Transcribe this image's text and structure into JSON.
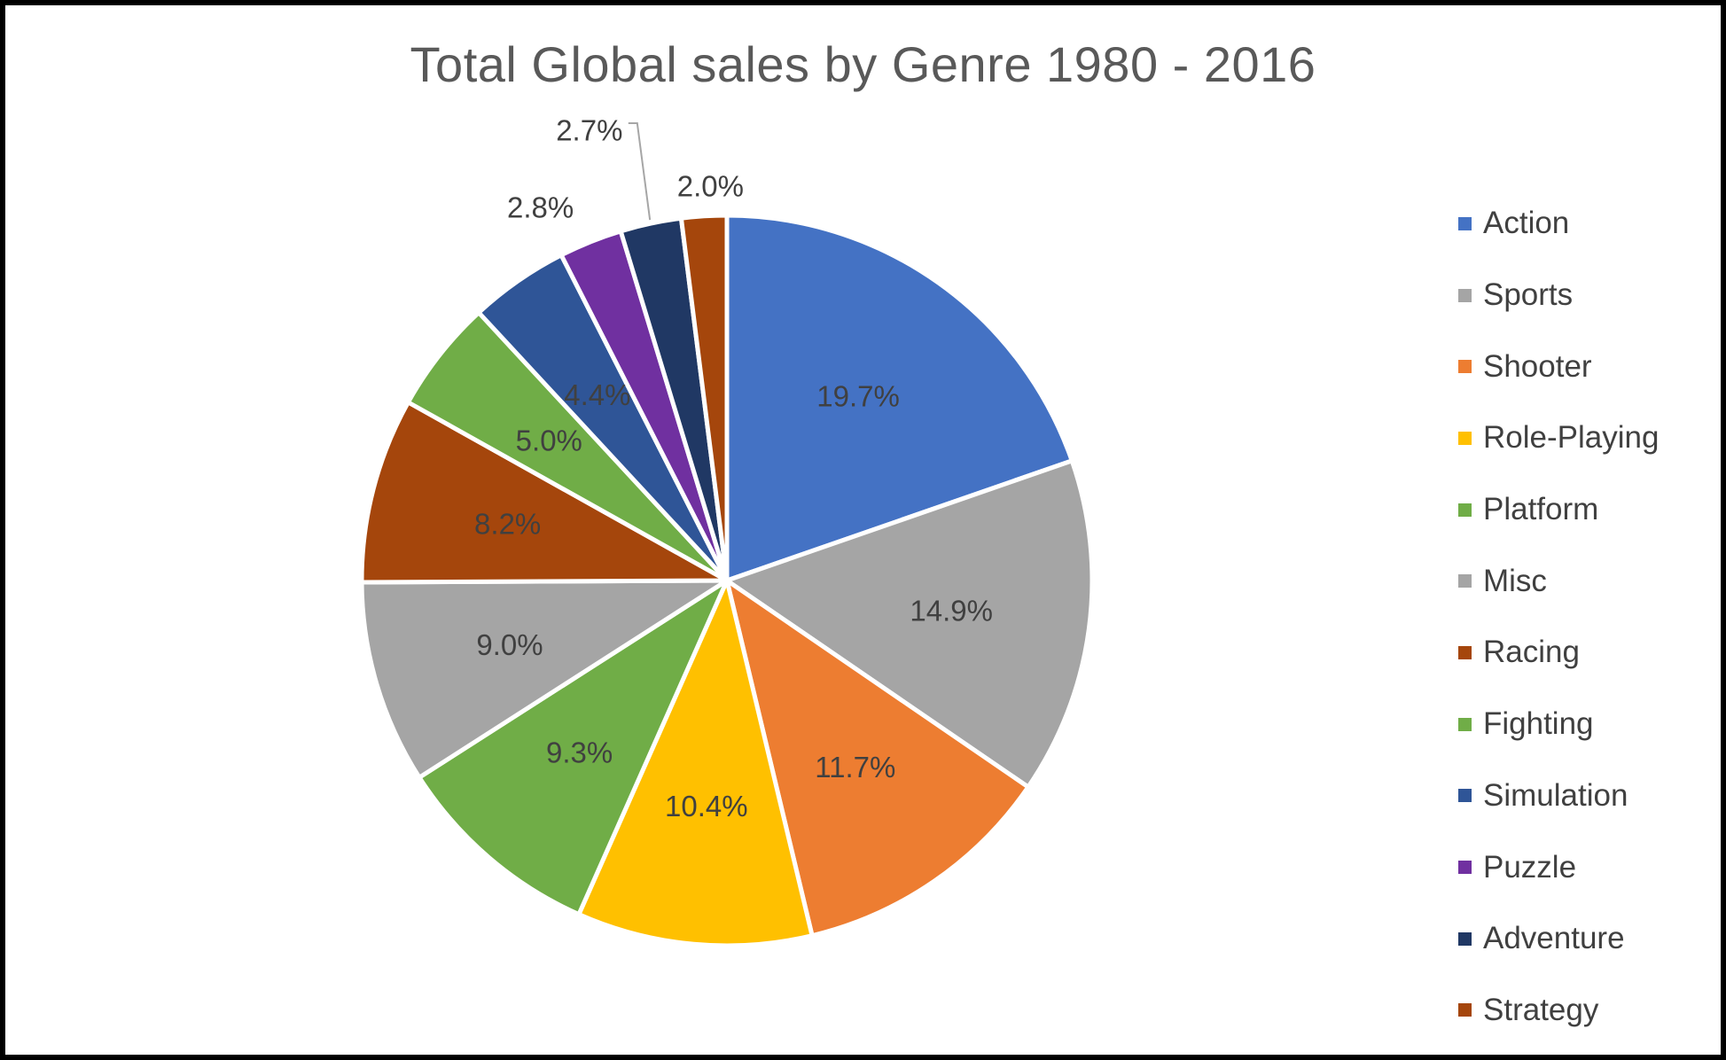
{
  "chart_data": {
    "type": "pie",
    "title": "Total Global sales by Genre 1980 - 2016",
    "legend_position": "right",
    "slices": [
      {
        "name": "Action",
        "value": 19.7,
        "label": "19.7%",
        "color": "#4472C4"
      },
      {
        "name": "Sports",
        "value": 14.9,
        "label": "14.9%",
        "color": "#A5A5A5"
      },
      {
        "name": "Shooter",
        "value": 11.7,
        "label": "11.7%",
        "color": "#ED7D31"
      },
      {
        "name": "Role-Playing",
        "value": 10.4,
        "label": "10.4%",
        "color": "#FFC000"
      },
      {
        "name": "Platform",
        "value": 9.3,
        "label": "9.3%",
        "color": "#70AD47"
      },
      {
        "name": "Misc",
        "value": 9.0,
        "label": "9.0%",
        "color": "#A5A5A5"
      },
      {
        "name": "Racing",
        "value": 8.2,
        "label": "8.2%",
        "color": "#A5460C"
      },
      {
        "name": "Fighting",
        "value": 5.0,
        "label": "5.0%",
        "color": "#70AD47"
      },
      {
        "name": "Simulation",
        "value": 4.4,
        "label": "4.4%",
        "color": "#2F5597"
      },
      {
        "name": "Puzzle",
        "value": 2.8,
        "label": "2.8%",
        "color": "#7030A0"
      },
      {
        "name": "Adventure",
        "value": 2.7,
        "label": "2.7%",
        "color": "#203864"
      },
      {
        "name": "Strategy",
        "value": 2.0,
        "label": "2.0%",
        "color": "#A5460C"
      }
    ]
  }
}
